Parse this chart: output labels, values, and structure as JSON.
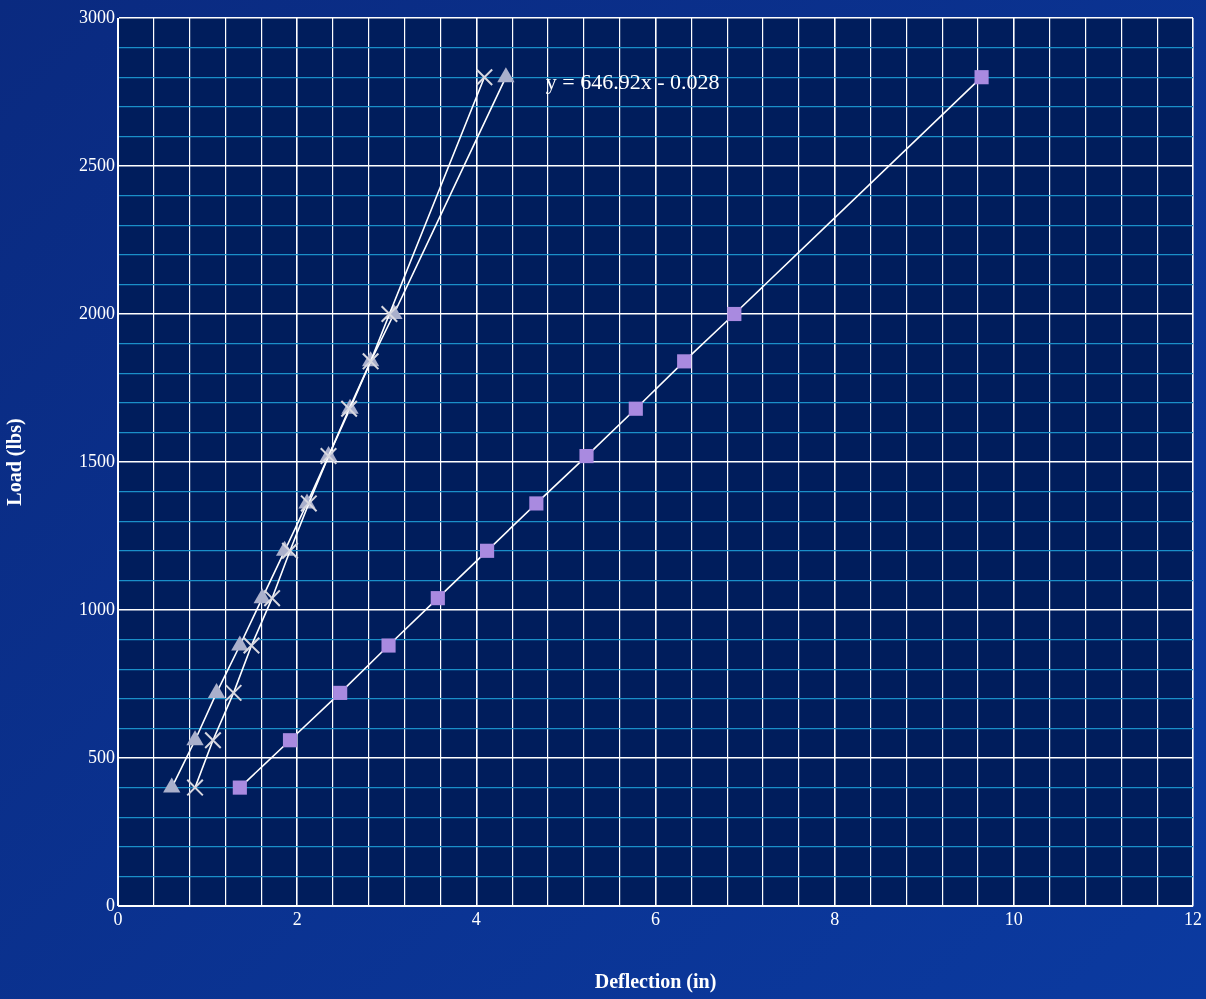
{
  "chart_data": {
    "type": "line",
    "xlabel": "Deflection (in)",
    "ylabel": "Load (lbs)",
    "xlim": [
      0,
      12
    ],
    "xticks": [
      0,
      {
        "value": 0.4,
        "label": null
      },
      {
        "value": 0.8,
        "label": null
      },
      {
        "value": 1.2,
        "label": null
      },
      {
        "value": 1.6,
        "label": null
      },
      2,
      {
        "value": 2.4,
        "label": null
      },
      {
        "value": 2.8,
        "label": null
      },
      {
        "value": 3.2,
        "label": null
      },
      {
        "value": 3.6,
        "label": null
      },
      4,
      {
        "value": 4.4,
        "label": null
      },
      {
        "value": 4.8,
        "label": null
      },
      {
        "value": 5.2,
        "label": null
      },
      {
        "value": 5.6,
        "label": null
      },
      6,
      {
        "value": 6.4,
        "label": null
      },
      {
        "value": 6.8,
        "label": null
      },
      {
        "value": 7.2,
        "label": null
      },
      {
        "value": 7.6,
        "label": null
      },
      8,
      {
        "value": 8.4,
        "label": null
      },
      {
        "value": 8.8,
        "label": null
      },
      {
        "value": 9.2,
        "label": null
      },
      {
        "value": 9.6,
        "label": null
      },
      10,
      {
        "value": 10.4,
        "label": null
      },
      {
        "value": 10.8,
        "label": null
      },
      {
        "value": 11.2,
        "label": null
      },
      {
        "value": 11.6,
        "label": null
      },
      12
    ],
    "ylim": [
      0,
      3000
    ],
    "yticks": [
      0,
      {
        "value": 100,
        "label": null
      },
      {
        "value": 200,
        "label": null
      },
      {
        "value": 300,
        "label": null
      },
      {
        "value": 400,
        "label": null
      },
      500,
      {
        "value": 600,
        "label": null
      },
      {
        "value": 700,
        "label": null
      },
      {
        "value": 800,
        "label": null
      },
      {
        "value": 900,
        "label": null
      },
      1000,
      {
        "value": 1100,
        "label": null
      },
      {
        "value": 1200,
        "label": null
      },
      {
        "value": 1300,
        "label": null
      },
      {
        "value": 1400,
        "label": null
      },
      1500,
      {
        "value": 1600,
        "label": null
      },
      {
        "value": 1700,
        "label": null
      },
      {
        "value": 1800,
        "label": null
      },
      {
        "value": 1900,
        "label": null
      },
      2000,
      {
        "value": 2100,
        "label": null
      },
      {
        "value": 2200,
        "label": null
      },
      {
        "value": 2300,
        "label": null
      },
      {
        "value": 2400,
        "label": null
      },
      2500,
      {
        "value": 2600,
        "label": null
      },
      {
        "value": 2700,
        "label": null
      },
      {
        "value": 2800,
        "label": null
      },
      {
        "value": 2900,
        "label": null
      },
      3000
    ],
    "grid": true,
    "line_style": "solid",
    "series": [
      {
        "color": "#aab0cc",
        "marker": "triangle",
        "x": [
          0.6,
          0.86,
          1.1,
          1.36,
          1.61,
          1.86,
          2.11,
          2.35,
          2.59,
          2.82,
          3.08,
          4.33
        ],
        "values": [
          400,
          560,
          720,
          880,
          1040,
          1200,
          1360,
          1520,
          1680,
          1840,
          2000,
          2800
        ]
      },
      {
        "color": "#d8d8e0",
        "marker": "cross",
        "x": [
          0.86,
          1.06,
          1.29,
          1.49,
          1.72,
          1.92,
          2.13,
          2.35,
          2.58,
          2.82,
          3.03,
          4.09
        ],
        "values": [
          400,
          560,
          720,
          880,
          1040,
          1200,
          1360,
          1520,
          1680,
          1840,
          2000,
          2800
        ]
      },
      {
        "color": "#a98ae0",
        "marker": "square",
        "x": [
          1.36,
          1.92,
          2.48,
          3.02,
          3.57,
          4.12,
          4.67,
          5.23,
          5.78,
          6.32,
          6.88,
          9.64
        ],
        "values": [
          400,
          560,
          720,
          880,
          1040,
          1200,
          1360,
          1520,
          1680,
          1840,
          2000,
          2800
        ]
      }
    ],
    "annotations": [
      "y = 646.92x - 0.028"
    ]
  }
}
